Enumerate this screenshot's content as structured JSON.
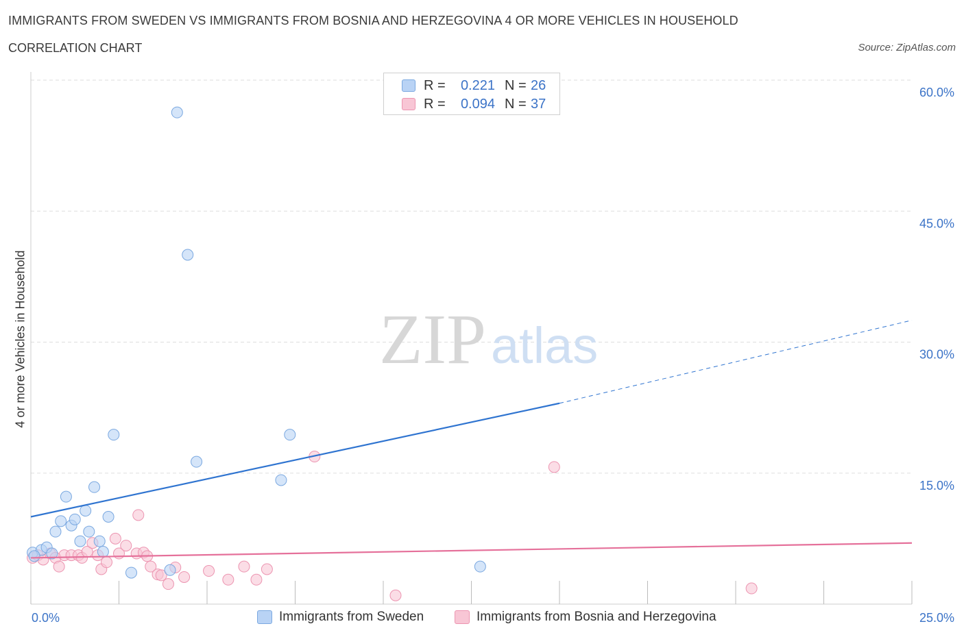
{
  "title": "IMMIGRANTS FROM SWEDEN VS IMMIGRANTS FROM BOSNIA AND HERZEGOVINA 4 OR MORE VEHICLES IN HOUSEHOLD",
  "subtitle": "CORRELATION CHART",
  "source": "Source: ZipAtlas.com",
  "watermark": {
    "zip": "ZIP",
    "atlas": "atlas"
  },
  "legend": {
    "rows": [
      {
        "r_label": "R =",
        "r_value": "0.221",
        "n_label": "N =",
        "n_value": "26"
      },
      {
        "r_label": "R =",
        "r_value": "0.094",
        "n_label": "N =",
        "n_value": "37"
      }
    ]
  },
  "colors": {
    "sweden_fill": "#b9d3f5",
    "sweden_stroke": "#7aa8e0",
    "sweden_line": "#2f74d0",
    "bosnia_fill": "#f8c6d5",
    "bosnia_stroke": "#ec94b0",
    "bosnia_line": "#e5709a",
    "axis_label": "#3b73c7",
    "grid": "#dddddd"
  },
  "chart_data": {
    "type": "scatter",
    "title": "IMMIGRANTS FROM SWEDEN VS IMMIGRANTS FROM BOSNIA AND HERZEGOVINA 4 OR MORE VEHICLES IN HOUSEHOLD",
    "xlabel": "",
    "ylabel": "4 or more Vehicles in Household",
    "xlim": [
      0,
      25
    ],
    "ylim": [
      0,
      60
    ],
    "x_tick_labels": [
      "0.0%",
      "25.0%"
    ],
    "y_ticks": [
      15,
      30,
      45,
      60
    ],
    "y_tick_labels": [
      "15.0%",
      "30.0%",
      "45.0%",
      "60.0%"
    ],
    "grid": true,
    "legend_position": "bottom",
    "series": [
      {
        "name": "Immigrants from Sweden",
        "R": 0.221,
        "N": 26,
        "trend": {
          "x0": 0,
          "y0": 10.0,
          "x1": 15,
          "y1": 23.0,
          "dashed_to_x": 25,
          "dashed_to_y": 32.5
        },
        "points": [
          {
            "x": 0.05,
            "y": 5.9
          },
          {
            "x": 0.3,
            "y": 6.2
          },
          {
            "x": 0.45,
            "y": 6.5
          },
          {
            "x": 0.6,
            "y": 5.8
          },
          {
            "x": 0.7,
            "y": 8.3
          },
          {
            "x": 0.85,
            "y": 9.5
          },
          {
            "x": 1.0,
            "y": 12.3
          },
          {
            "x": 1.15,
            "y": 9.0
          },
          {
            "x": 1.25,
            "y": 9.7
          },
          {
            "x": 1.4,
            "y": 7.2
          },
          {
            "x": 1.55,
            "y": 10.7
          },
          {
            "x": 1.65,
            "y": 8.3
          },
          {
            "x": 1.8,
            "y": 13.4
          },
          {
            "x": 1.95,
            "y": 7.2
          },
          {
            "x": 2.05,
            "y": 6.0
          },
          {
            "x": 2.2,
            "y": 10.0
          },
          {
            "x": 2.35,
            "y": 19.4
          },
          {
            "x": 2.85,
            "y": 3.6
          },
          {
            "x": 3.95,
            "y": 3.9
          },
          {
            "x": 4.15,
            "y": 56.3
          },
          {
            "x": 4.45,
            "y": 40.0
          },
          {
            "x": 4.7,
            "y": 16.3
          },
          {
            "x": 7.1,
            "y": 14.2
          },
          {
            "x": 7.35,
            "y": 19.4
          },
          {
            "x": 12.75,
            "y": 4.3
          },
          {
            "x": 0.1,
            "y": 5.5
          }
        ]
      },
      {
        "name": "Immigrants from Bosnia and Herzegovina",
        "R": 0.094,
        "N": 37,
        "trend": {
          "x0": 0,
          "y0": 5.3,
          "x1": 25,
          "y1": 7.0
        },
        "points": [
          {
            "x": 0.05,
            "y": 5.3
          },
          {
            "x": 0.2,
            "y": 5.6
          },
          {
            "x": 0.35,
            "y": 5.1
          },
          {
            "x": 0.55,
            "y": 5.8
          },
          {
            "x": 0.7,
            "y": 5.3
          },
          {
            "x": 0.8,
            "y": 4.3
          },
          {
            "x": 0.95,
            "y": 5.6
          },
          {
            "x": 1.15,
            "y": 5.6
          },
          {
            "x": 1.35,
            "y": 5.6
          },
          {
            "x": 1.45,
            "y": 5.3
          },
          {
            "x": 1.6,
            "y": 6.0
          },
          {
            "x": 1.75,
            "y": 7.0
          },
          {
            "x": 1.9,
            "y": 5.6
          },
          {
            "x": 2.0,
            "y": 4.0
          },
          {
            "x": 2.15,
            "y": 4.8
          },
          {
            "x": 2.4,
            "y": 7.5
          },
          {
            "x": 2.5,
            "y": 5.8
          },
          {
            "x": 2.7,
            "y": 6.7
          },
          {
            "x": 3.0,
            "y": 5.8
          },
          {
            "x": 3.05,
            "y": 10.2
          },
          {
            "x": 3.2,
            "y": 5.9
          },
          {
            "x": 3.3,
            "y": 5.5
          },
          {
            "x": 3.4,
            "y": 4.3
          },
          {
            "x": 3.6,
            "y": 3.4
          },
          {
            "x": 3.7,
            "y": 3.3
          },
          {
            "x": 3.9,
            "y": 2.3
          },
          {
            "x": 4.1,
            "y": 4.2
          },
          {
            "x": 4.35,
            "y": 3.1
          },
          {
            "x": 5.05,
            "y": 3.8
          },
          {
            "x": 5.6,
            "y": 2.8
          },
          {
            "x": 6.05,
            "y": 4.3
          },
          {
            "x": 6.4,
            "y": 2.8
          },
          {
            "x": 6.7,
            "y": 4.0
          },
          {
            "x": 8.05,
            "y": 16.9
          },
          {
            "x": 10.35,
            "y": 1.0
          },
          {
            "x": 14.85,
            "y": 15.7
          },
          {
            "x": 20.45,
            "y": 1.8
          }
        ]
      }
    ]
  }
}
